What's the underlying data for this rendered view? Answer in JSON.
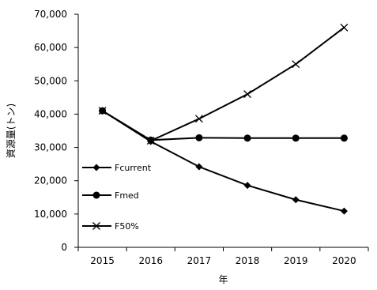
{
  "chart_data": {
    "type": "line",
    "title": "",
    "xlabel": "年",
    "ylabel": "資源量(トン)",
    "x": [
      "2015",
      "2016",
      "2017",
      "2018",
      "2019",
      "2020"
    ],
    "ylim": [
      0,
      70000
    ],
    "yticks": [
      "0",
      "10,000",
      "20,000",
      "30,000",
      "40,000",
      "50,000",
      "60,000",
      "70,000"
    ],
    "grid": false,
    "legend_position": "left",
    "series": [
      {
        "name": "Fcurrent",
        "marker": "diamond",
        "color": "#000000",
        "values": [
          41000,
          31800,
          24200,
          18600,
          14300,
          10900
        ]
      },
      {
        "name": "Fmed",
        "marker": "circle",
        "color": "#000000",
        "values": [
          41000,
          32200,
          32900,
          32800,
          32800,
          32800
        ]
      },
      {
        "name": "F50%",
        "marker": "x",
        "color": "#000000",
        "values": [
          41000,
          32000,
          38600,
          46000,
          55000,
          66000
        ]
      }
    ]
  }
}
